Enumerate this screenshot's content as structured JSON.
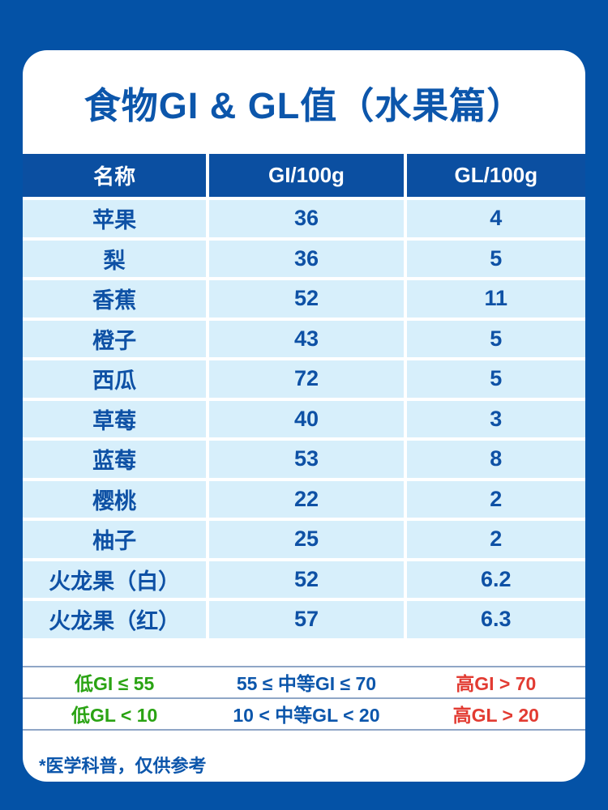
{
  "poster": {
    "title": "食物GI & GL值（水果篇）",
    "footnote": "*医学科普，仅供参考"
  },
  "table": {
    "headers": {
      "name": "名称",
      "gi": "GI/100g",
      "gl": "GL/100g"
    },
    "rows": [
      {
        "name": "苹果",
        "gi": "36",
        "gl": "4"
      },
      {
        "name": "梨",
        "gi": "36",
        "gl": "5"
      },
      {
        "name": "香蕉",
        "gi": "52",
        "gl": "11"
      },
      {
        "name": "橙子",
        "gi": "43",
        "gl": "5"
      },
      {
        "name": "西瓜",
        "gi": "72",
        "gl": "5"
      },
      {
        "name": "草莓",
        "gi": "40",
        "gl": "3"
      },
      {
        "name": "蓝莓",
        "gi": "53",
        "gl": "8"
      },
      {
        "name": "樱桃",
        "gi": "22",
        "gl": "2"
      },
      {
        "name": "柚子",
        "gi": "25",
        "gl": "2"
      },
      {
        "name": "火龙果（白）",
        "gi": "52",
        "gl": "6.2"
      },
      {
        "name": "火龙果（红）",
        "gi": "57",
        "gl": "6.3"
      }
    ]
  },
  "legend": {
    "gi_row": {
      "low": "低GI ≤ 55",
      "mid": "55 ≤ 中等GI ≤ 70",
      "high": "高GI > 70"
    },
    "gl_row": {
      "low": "低GL < 10",
      "mid": "10 < 中等GL < 20",
      "high": "高GL > 20"
    }
  },
  "colors": {
    "background": "#0452a6",
    "header_bg": "#0b4fa1",
    "row_bg": "#d7effb",
    "text_blue": "#0c56ab",
    "legend_green": "#2aa313",
    "legend_red": "#e23b32",
    "legend_divider": "#8fa6c6"
  },
  "chart_data": {
    "type": "table",
    "title": "食物GI & GL值（水果篇）",
    "columns": [
      "名称",
      "GI/100g",
      "GL/100g"
    ],
    "rows": [
      [
        "苹果",
        36,
        4
      ],
      [
        "梨",
        36,
        5
      ],
      [
        "香蕉",
        52,
        11
      ],
      [
        "橙子",
        43,
        5
      ],
      [
        "西瓜",
        72,
        5
      ],
      [
        "草莓",
        40,
        3
      ],
      [
        "蓝莓",
        53,
        8
      ],
      [
        "樱桃",
        22,
        2
      ],
      [
        "柚子",
        25,
        2
      ],
      [
        "火龙果（白）",
        52,
        6.2
      ],
      [
        "火龙果（红）",
        57,
        6.3
      ]
    ],
    "thresholds": {
      "gi": {
        "low": "低GI ≤ 55",
        "medium": "55 ≤ 中等GI ≤ 70",
        "high": "高GI > 70"
      },
      "gl": {
        "low": "低GL < 10",
        "medium": "10 < 中等GL < 20",
        "high": "高GL > 20"
      }
    },
    "footnote": "*医学科普，仅供参考"
  }
}
